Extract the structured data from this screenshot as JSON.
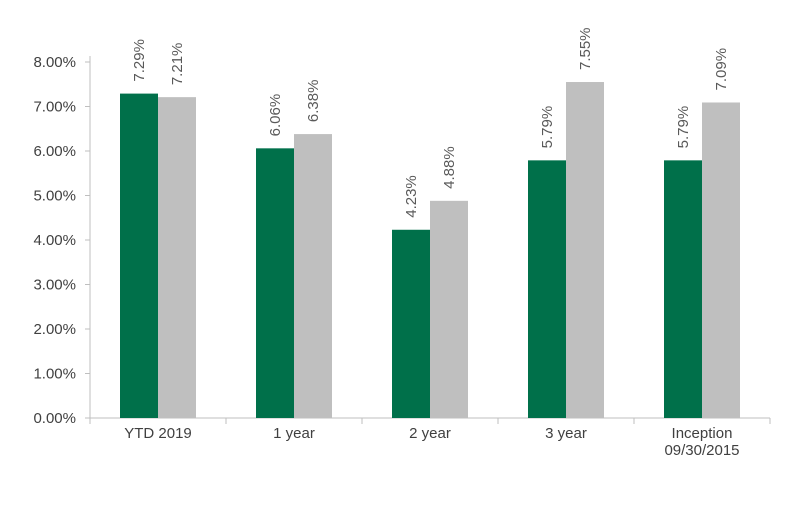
{
  "chart_data": {
    "type": "bar",
    "categories": [
      [
        "YTD 2019"
      ],
      [
        "1 year"
      ],
      [
        "2 year"
      ],
      [
        "3 year"
      ],
      [
        "Inception",
        "09/30/2015"
      ]
    ],
    "series": [
      {
        "color": "#00704a",
        "values": [
          7.29,
          6.06,
          4.23,
          5.79,
          5.79
        ],
        "labels": [
          "7.29%",
          "6.06%",
          "4.23%",
          "5.79%",
          "5.79%"
        ]
      },
      {
        "color": "#bfbfbf",
        "values": [
          7.21,
          6.38,
          4.88,
          7.55,
          7.09
        ],
        "labels": [
          "7.21%",
          "6.38%",
          "4.88%",
          "7.55%",
          "7.09%"
        ]
      }
    ],
    "y_ticks": [
      0,
      1,
      2,
      3,
      4,
      5,
      6,
      7,
      8
    ],
    "y_tick_labels": [
      "0.00%",
      "1.00%",
      "2.00%",
      "3.00%",
      "4.00%",
      "5.00%",
      "6.00%",
      "7.00%",
      "8.00%"
    ],
    "ylim": [
      0,
      8
    ],
    "grid": false,
    "legend": "none",
    "title": "",
    "xlabel": "",
    "ylabel": ""
  }
}
